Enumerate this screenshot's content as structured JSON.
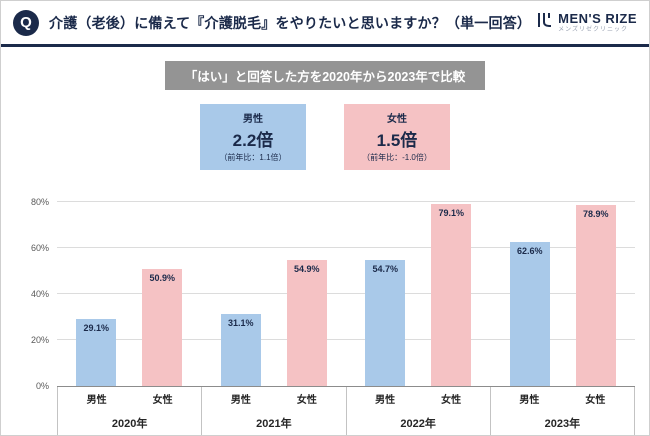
{
  "header": {
    "q_label": "Q",
    "title": "介護（老後）に備えて『介護脱毛』をやりたいと思いますか？（単一回答）",
    "logo_text": "MEN'S RIZE",
    "logo_subtext": "メンズリゼクリニック"
  },
  "badge": {
    "label": "「はい」と回答した方を2020年から2023年で比較"
  },
  "highlights": [
    {
      "key": "male",
      "group": "男性",
      "value": "2.2倍",
      "note": "（前年比：1.1倍）",
      "color": "#a9c9e9"
    },
    {
      "key": "female",
      "group": "女性",
      "value": "1.5倍",
      "note": "（前年比：-1.0倍）",
      "color": "#f5c2c4"
    }
  ],
  "chart_data": {
    "type": "bar",
    "categories": [
      "2020年",
      "2021年",
      "2022年",
      "2023年"
    ],
    "series": [
      {
        "key": "male",
        "name": "男性",
        "color": "#a9c9e9",
        "values": [
          29.1,
          31.1,
          54.7,
          62.6
        ]
      },
      {
        "key": "female",
        "name": "女性",
        "color": "#f5c2c4",
        "values": [
          50.9,
          54.9,
          79.1,
          78.9
        ]
      }
    ],
    "ylim": [
      0,
      80
    ],
    "yticks": [
      "0%",
      "20%",
      "40%",
      "60%",
      "80%"
    ],
    "grid": true,
    "value_suffix": "%",
    "legend_position": "none",
    "title": "「はい」と回答した方を2020年から2023年で比較"
  },
  "colors": {
    "navy": "#1b2a4a",
    "male_bar": "#a9c9e9",
    "female_bar": "#f5c2c4",
    "badge_bg": "#949494",
    "gridline": "#dcdcdc"
  }
}
